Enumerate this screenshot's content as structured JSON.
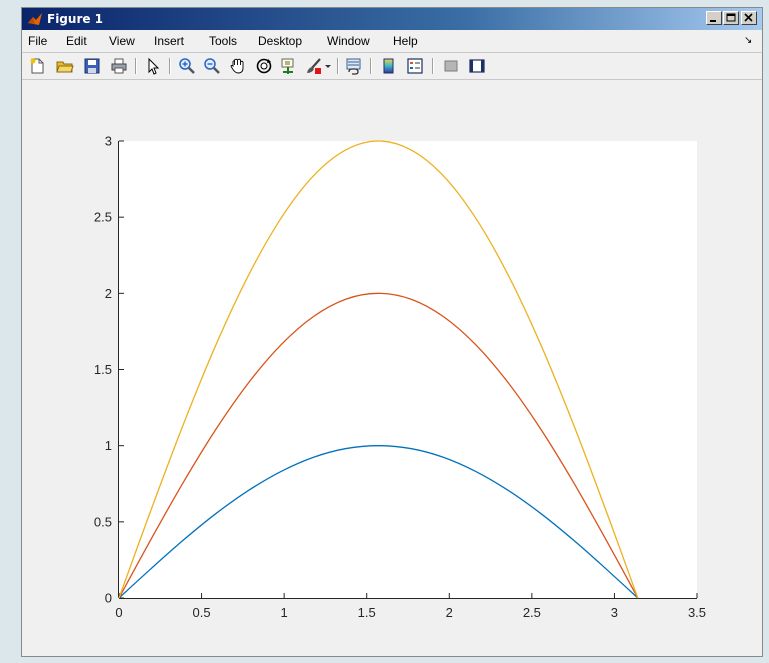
{
  "window": {
    "title": "Figure 1"
  },
  "menubar": {
    "items": [
      "File",
      "Edit",
      "View",
      "Insert",
      "Tools",
      "Desktop",
      "Window",
      "Help"
    ],
    "dock_arrow": "↘"
  },
  "toolbar": {
    "icons": [
      "new-figure-icon",
      "open-file-icon",
      "save-icon",
      "print-icon",
      "edit-plot-pointer-icon",
      "zoom-in-icon",
      "zoom-out-icon",
      "pan-hand-icon",
      "rotate-3d-icon",
      "data-cursor-icon",
      "brush-icon",
      "link-plot-icon",
      "colorbar-icon",
      "legend-icon",
      "hide-plot-tools-icon",
      "show-plot-tools-icon"
    ]
  },
  "colors": {
    "series1": "#0072BD",
    "series2": "#D95319",
    "series3": "#EDB120",
    "axes_bg": "#ffffff",
    "figure_bg": "#f0f0f0"
  },
  "chart_data": {
    "type": "line",
    "title": "",
    "xlabel": "",
    "ylabel": "",
    "xlim": [
      0,
      3.5
    ],
    "ylim": [
      0,
      3
    ],
    "xticks": [
      "0",
      "0.5",
      "1",
      "1.5",
      "2",
      "2.5",
      "3",
      "3.5"
    ],
    "yticks": [
      "0",
      "0.5",
      "1",
      "1.5",
      "2",
      "2.5",
      "3"
    ],
    "grid": false,
    "x": [
      0,
      0.1963,
      0.3927,
      0.589,
      0.7854,
      0.9817,
      1.1781,
      1.3744,
      1.5708,
      1.7671,
      1.9635,
      2.1598,
      2.3562,
      2.5525,
      2.7489,
      2.9452,
      3.1416
    ],
    "series": [
      {
        "values": [
          0,
          0.195,
          0.383,
          0.556,
          0.707,
          0.831,
          0.924,
          0.981,
          1.0,
          0.981,
          0.924,
          0.831,
          0.707,
          0.556,
          0.383,
          0.195,
          0
        ]
      },
      {
        "values": [
          0,
          0.39,
          0.765,
          1.111,
          1.414,
          1.663,
          1.848,
          1.962,
          2.0,
          1.962,
          1.848,
          1.663,
          1.414,
          1.111,
          0.765,
          0.39,
          0
        ]
      },
      {
        "values": [
          0,
          0.585,
          1.148,
          1.667,
          2.121,
          2.494,
          2.772,
          2.942,
          3.0,
          2.942,
          2.772,
          2.494,
          2.121,
          1.667,
          1.148,
          0.585,
          0
        ]
      }
    ]
  }
}
